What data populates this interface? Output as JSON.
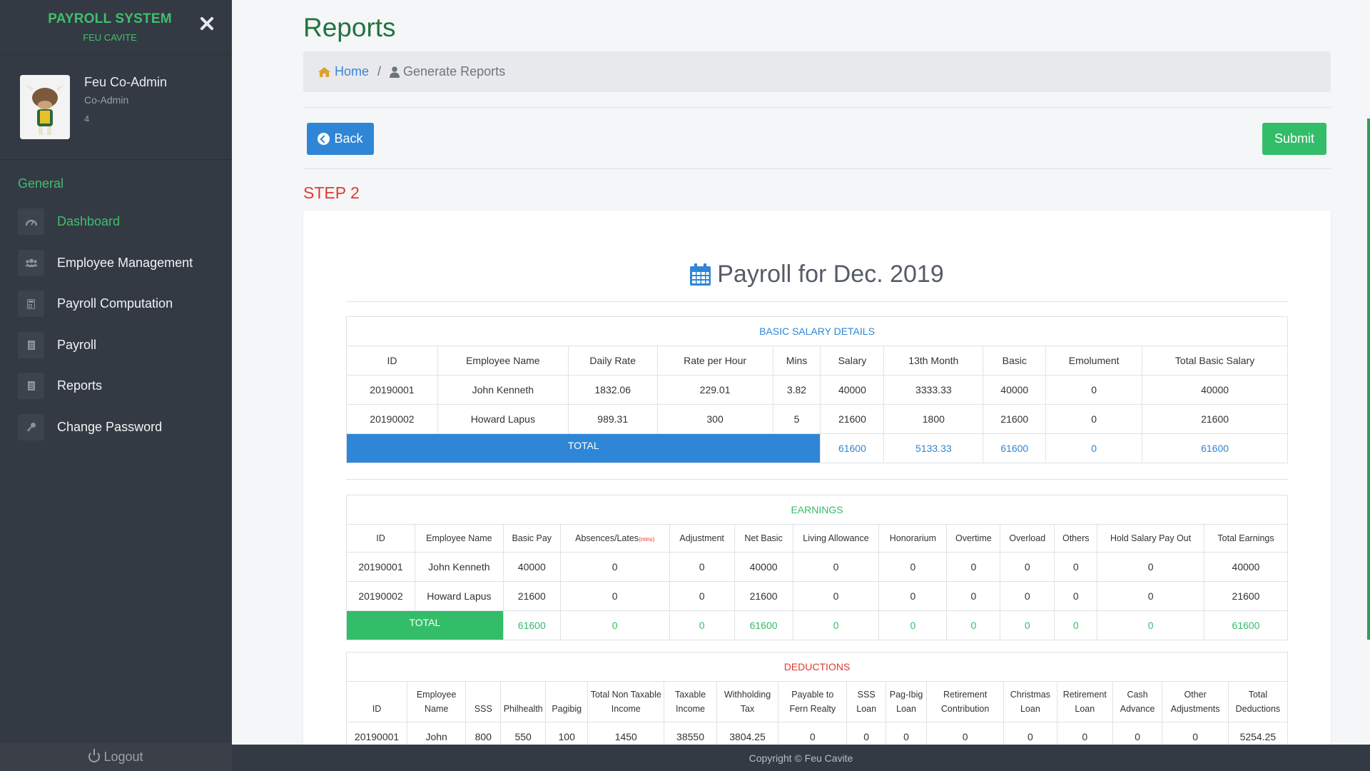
{
  "brand": {
    "title": "PAYROLL SYSTEM",
    "subtitle": "FEU CAVITE"
  },
  "profile": {
    "name": "Feu Co-Admin",
    "role": "Co-Admin",
    "id": "4"
  },
  "menu": {
    "heading": "General",
    "items": [
      {
        "label": "Dashboard",
        "icon": "dashboard-icon",
        "active": true
      },
      {
        "label": "Employee Management",
        "icon": "users-icon"
      },
      {
        "label": "Payroll Computation",
        "icon": "calculator-icon"
      },
      {
        "label": "Payroll",
        "icon": "document-icon"
      },
      {
        "label": "Reports",
        "icon": "document-icon"
      },
      {
        "label": "Change Password",
        "icon": "key-icon"
      }
    ],
    "logout": "Logout"
  },
  "page": {
    "title": "Reports",
    "step": "STEP 2"
  },
  "breadcrumb": {
    "home": "Home",
    "separator": "/",
    "current": "Generate Reports"
  },
  "buttons": {
    "back": "Back",
    "submit": "Submit"
  },
  "payroll_title": "Payroll for Dec. 2019",
  "basic": {
    "title": "BASIC SALARY DETAILS",
    "headers": [
      "ID",
      "Employee Name",
      "Daily Rate",
      "Rate per Hour",
      "Mins",
      "Salary",
      "13th Month",
      "Basic",
      "Emolument",
      "Total Basic Salary"
    ],
    "rows": [
      [
        "20190001",
        "John Kenneth",
        "1832.06",
        "229.01",
        "3.82",
        "40000",
        "3333.33",
        "40000",
        "0",
        "40000"
      ],
      [
        "20190002",
        "Howard Lapus",
        "989.31",
        "300",
        "5",
        "21600",
        "1800",
        "21600",
        "0",
        "21600"
      ]
    ],
    "total_label": "TOTAL",
    "totals": [
      "61600",
      "5133.33",
      "61600",
      "0",
      "61600"
    ]
  },
  "earnings": {
    "title": "EARNINGS",
    "headers": [
      "ID",
      "Employee Name",
      "Basic Pay",
      "Absences/Lates",
      "Adjustment",
      "Net Basic",
      "Living Allowance",
      "Honorarium",
      "Overtime",
      "Overload",
      "Others",
      "Hold Salary Pay Out",
      "Total Earnings"
    ],
    "mins_note": "(mins)",
    "rows": [
      [
        "20190001",
        "John Kenneth",
        "40000",
        "0",
        "0",
        "40000",
        "0",
        "0",
        "0",
        "0",
        "0",
        "0",
        "40000"
      ],
      [
        "20190002",
        "Howard Lapus",
        "21600",
        "0",
        "0",
        "21600",
        "0",
        "0",
        "0",
        "0",
        "0",
        "0",
        "21600"
      ]
    ],
    "total_label": "TOTAL",
    "totals": [
      "61600",
      "0",
      "0",
      "61600",
      "0",
      "0",
      "0",
      "0",
      "0",
      "0",
      "61600"
    ]
  },
  "deductions": {
    "title": "DEDUCTIONS",
    "headers": [
      [
        "ID"
      ],
      [
        "Employee",
        "Name"
      ],
      [
        "SSS"
      ],
      [
        "Philhealth"
      ],
      [
        "Pagibig"
      ],
      [
        "Total Non Taxable",
        "Income"
      ],
      [
        "Taxable",
        "Income"
      ],
      [
        "Withholding",
        "Tax"
      ],
      [
        "Payable to",
        "Fern Realty"
      ],
      [
        "SSS",
        "Loan"
      ],
      [
        "Pag-Ibig",
        "Loan"
      ],
      [
        "Retirement",
        "Contribution"
      ],
      [
        "Christmas",
        "Loan"
      ],
      [
        "Retirement",
        "Loan"
      ],
      [
        "Cash",
        "Advance"
      ],
      [
        "Other",
        "Adjustments"
      ],
      [
        "Total",
        "Deductions"
      ]
    ],
    "rows": [
      [
        "20190001",
        "John",
        "800",
        "550",
        "100",
        "1450",
        "38550",
        "3804.25",
        "0",
        "0",
        "0",
        "0",
        "0",
        "0",
        "0",
        "0",
        "5254.25"
      ]
    ]
  },
  "footer": "Copyright © Feu Cavite",
  "colors": {
    "sidebar": "#343a44",
    "accent_green": "#33bd68",
    "accent_blue": "#2f86d6",
    "accent_red": "#e03a32"
  }
}
